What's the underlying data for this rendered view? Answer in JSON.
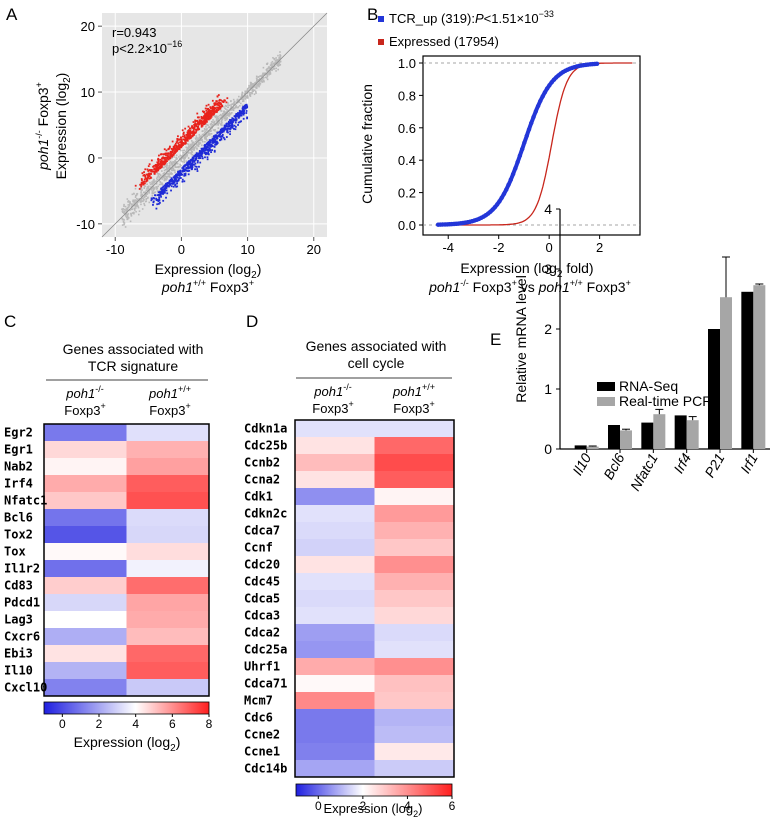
{
  "colors": {
    "up": "#e8231c",
    "down": "#1f2bd6",
    "neutral": "#b9b9b9",
    "panel_bg": "#e6e6e6",
    "cdf_up": "#2336d8",
    "cdf_expr": "#c8261c",
    "rna": "#000000",
    "pcr": "#a6a6a6"
  },
  "chart_data": [
    {
      "panel": "A",
      "type": "scatter",
      "annotation_r": "r=0.943",
      "annotation_p_base": "p<2.2×10",
      "annotation_p_exp": "−16",
      "xlabel_line1": "Expression (log",
      "xlabel_line1_sub": "2",
      "xlabel_line1_tail": ")",
      "xlabel_line2_gene": "poh1",
      "xlabel_line2_sup": "+/+",
      "xlabel_line2_rest": " Foxp3",
      "xlabel_line2_sup2": "+",
      "ylabel_line1_gene": "poh1",
      "ylabel_line1_sup": "-/-",
      "ylabel_line1_rest": " Foxp3",
      "ylabel_line1_sup2": "+",
      "ylabel_line2": "Expression (log",
      "ylabel_line2_sub": "2",
      "ylabel_line2_tail": ")",
      "xlim": [
        -12,
        22
      ],
      "ylim": [
        -12,
        22
      ],
      "x_ticks": [
        -10,
        0,
        10,
        20
      ],
      "y_ticks": [
        -10,
        0,
        10,
        20
      ],
      "x_tick_labels": [
        "-10",
        "0",
        "10",
        "20"
      ],
      "y_tick_labels": [
        "-10",
        "0",
        "10",
        "20"
      ],
      "series": [
        {
          "name": "up",
          "color": "#e8231c"
        },
        {
          "name": "down",
          "color": "#1f2bd6"
        },
        {
          "name": "neutral",
          "color": "#b9b9b9"
        }
      ]
    },
    {
      "panel": "B",
      "type": "line",
      "legend": [
        {
          "name": "TCR_up (319):",
          "p_label": "P",
          "p_text": "<1.51×10",
          "p_exp": "−33",
          "color": "#2336d8"
        },
        {
          "name": "Expressed (17954)",
          "color": "#c8261c"
        }
      ],
      "ylabel": "Cumulative fraction",
      "xlabel_line1": "Expression (log",
      "xlabel_line1_sub": "2",
      "xlabel_line1_tail": " fold)",
      "xlabel_line2_a_gene": "poh1",
      "xlabel_line2_a_sup": "-/-",
      "xlabel_line2_a_rest": " Foxp3",
      "xlabel_line2_a_sup2": "+",
      "xlabel_line2_vs": " vs ",
      "xlabel_line2_b_gene": "poh1",
      "xlabel_line2_b_sup": "+/+",
      "xlabel_line2_b_rest": " Foxp3",
      "xlabel_line2_b_sup2": "+",
      "xlim": [
        -5,
        3.6
      ],
      "ylim": [
        0,
        1
      ],
      "x_ticks": [
        -4,
        -2,
        0,
        2
      ],
      "y_ticks": [
        0.0,
        0.2,
        0.4,
        0.6,
        0.8,
        1.0
      ],
      "x_tick_labels": [
        "-4",
        "-2",
        "0",
        "2"
      ],
      "y_tick_labels": [
        "0.0",
        "0.2",
        "0.4",
        "0.6",
        "0.8",
        "1.0"
      ],
      "series": [
        {
          "name": "TCR_up",
          "cdf_center": -1.0,
          "cdf_scale": 0.55,
          "x_min": -4.4,
          "x_max": 1.9
        },
        {
          "name": "Expressed",
          "cdf_center": 0.1,
          "cdf_scale": 0.3,
          "x_min": -4.4,
          "x_max": 3.3
        }
      ]
    },
    {
      "panel": "C",
      "type": "heatmap",
      "title_line1": "Genes associated with",
      "title_line2": "TCR signature",
      "col_headers": [
        {
          "gene": "poh1",
          "sup": "-/-",
          "line2": "Foxp3",
          "sup2": "+"
        },
        {
          "gene": "poh1",
          "sup": "+/+",
          "line2": "Foxp3",
          "sup2": "+"
        }
      ],
      "rows": [
        "Egr2",
        "Egr1",
        "Nab2",
        "Irf4",
        "Nfatc1",
        "Bcl6",
        "Tox2",
        "Tox",
        "Il1r2",
        "Cd83",
        "Pdcd1",
        "Lag3",
        "Cxcr6",
        "Ebi3",
        "Il10",
        "Cxcl10"
      ],
      "values": [
        [
          1.0,
          3.3
        ],
        [
          4.7,
          5.4
        ],
        [
          4.2,
          5.7
        ],
        [
          5.5,
          6.9
        ],
        [
          5.0,
          7.1
        ],
        [
          0.9,
          3.2
        ],
        [
          0.2,
          3.1
        ],
        [
          4.1,
          4.6
        ],
        [
          0.8,
          3.7
        ],
        [
          4.9,
          6.6
        ],
        [
          3.1,
          5.6
        ],
        [
          4.0,
          5.5
        ],
        [
          2.2,
          5.2
        ],
        [
          4.5,
          6.7
        ],
        [
          2.3,
          6.9
        ],
        [
          1.2,
          2.8
        ]
      ],
      "colorbar": {
        "min": -1,
        "max": 8,
        "ticks": [
          0,
          2,
          4,
          6,
          8
        ],
        "tick_labels": [
          "0",
          "2",
          "4",
          "6",
          "8"
        ],
        "label": "Expression (log",
        "label_sub": "2",
        "label_tail": ")"
      }
    },
    {
      "panel": "D",
      "type": "heatmap",
      "title_line1": "Genes associated with",
      "title_line2": "cell cycle",
      "col_headers": [
        {
          "gene": "poh1",
          "sup": "-/-",
          "line2": "Foxp3",
          "sup2": "+"
        },
        {
          "gene": "poh1",
          "sup": "+/+",
          "line2": "Foxp3",
          "sup2": "+"
        }
      ],
      "rows": [
        "Cdkn1a",
        "Cdc25b",
        "Ccnb2",
        "Ccna2",
        "Cdk1",
        "Cdkn2c",
        "Cdca7",
        "Ccnf",
        "Cdc20",
        "Cdc45",
        "Cdca5",
        "Cdca3",
        "Cdca2",
        "Cdc25a",
        "Uhrf1",
        "Cdca71",
        "Mcm7",
        "Cdc6",
        "Ccne2",
        "Ccne1",
        "Cdc14b"
      ],
      "values": [
        [
          1.6,
          1.6
        ],
        [
          2.5,
          4.7
        ],
        [
          3.2,
          5.2
        ],
        [
          2.5,
          4.9
        ],
        [
          0.5,
          2.2
        ],
        [
          1.6,
          3.8
        ],
        [
          1.5,
          3.4
        ],
        [
          1.4,
          3.0
        ],
        [
          2.5,
          4.0
        ],
        [
          1.6,
          3.4
        ],
        [
          1.5,
          3.0
        ],
        [
          1.6,
          2.7
        ],
        [
          0.7,
          1.5
        ],
        [
          0.6,
          1.6
        ],
        [
          3.5,
          4.0
        ],
        [
          2.1,
          3.1
        ],
        [
          4.1,
          3.0
        ],
        [
          0.2,
          1.0
        ],
        [
          0.2,
          1.1
        ],
        [
          0.3,
          2.4
        ],
        [
          0.8,
          1.3
        ]
      ],
      "colorbar": {
        "min": -1,
        "max": 6,
        "ticks": [
          0,
          2,
          4,
          6
        ],
        "tick_labels": [
          "0",
          "2",
          "4",
          "6"
        ],
        "label": "Expression (log",
        "label_sub": "2",
        "label_tail": ")"
      }
    },
    {
      "panel": "E",
      "type": "bar",
      "ylabel": "Relative mRNA level",
      "categories": [
        "Il10",
        "Bcl6",
        "Nfatc1",
        "Irf4",
        "P21",
        "Irf1"
      ],
      "ylim": [
        0,
        4
      ],
      "y_ticks": [
        0,
        1,
        2,
        3,
        4
      ],
      "y_tick_labels": [
        "0",
        "1",
        "2",
        "3",
        "4"
      ],
      "series": [
        {
          "name": "RNA-Seq",
          "color": "#000000",
          "values": [
            0.06,
            0.4,
            0.44,
            0.56,
            2.0,
            2.62
          ],
          "errors": [
            0,
            0,
            0,
            0,
            0,
            0
          ]
        },
        {
          "name": "Real-time PCR",
          "color": "#a6a6a6",
          "values": [
            0.04,
            0.31,
            0.58,
            0.48,
            2.53,
            2.73
          ],
          "errors": [
            0.01,
            0.02,
            0.08,
            0.06,
            0.67,
            0.02
          ]
        }
      ]
    }
  ],
  "panels": {
    "A": "A",
    "B": "B",
    "C": "C",
    "D": "D",
    "E": "E"
  }
}
